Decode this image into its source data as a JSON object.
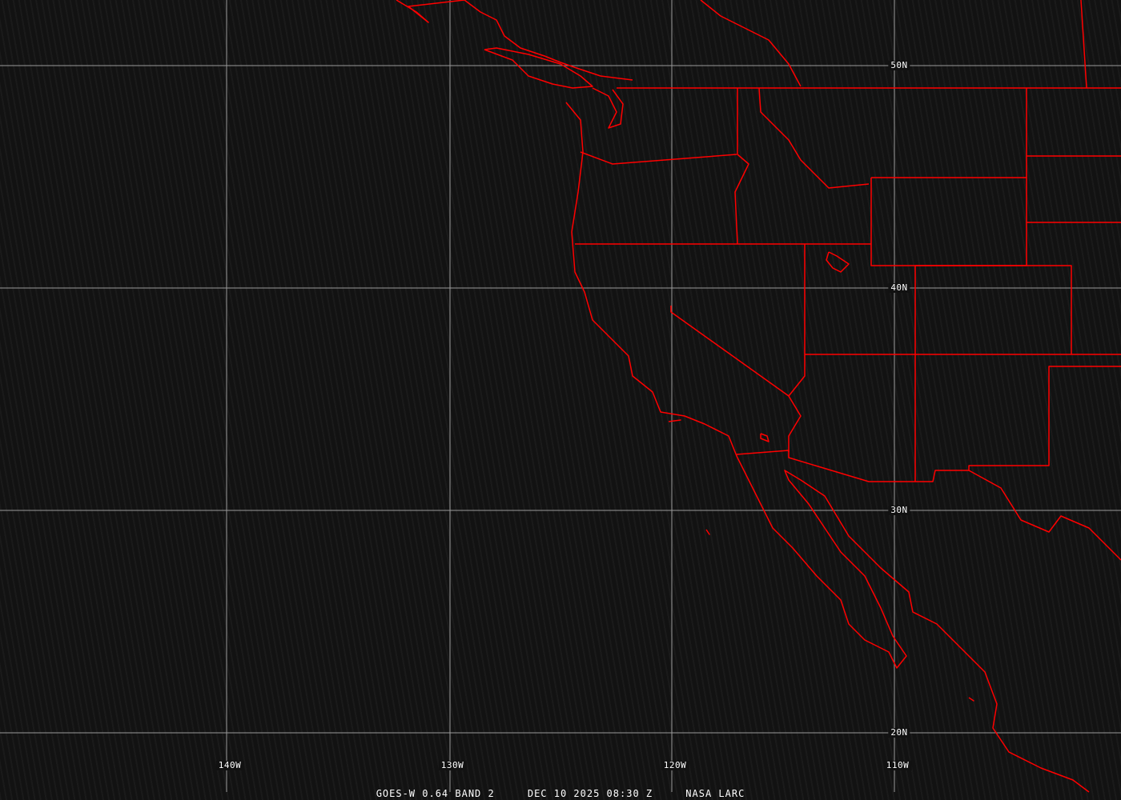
{
  "caption": {
    "satellite": "GOES-W 0.64 BAND 2",
    "datetime": "DEC 10 2025 08:30 Z",
    "source": "NASA LARC"
  },
  "grid": {
    "longitudes": [
      "140W",
      "130W",
      "120W",
      "110W"
    ],
    "latitudes": [
      "50N",
      "40N",
      "30N",
      "20N"
    ]
  },
  "colors": {
    "boundaries": "#ff0000",
    "grid": "#9a9a9a",
    "background": "#121212"
  }
}
